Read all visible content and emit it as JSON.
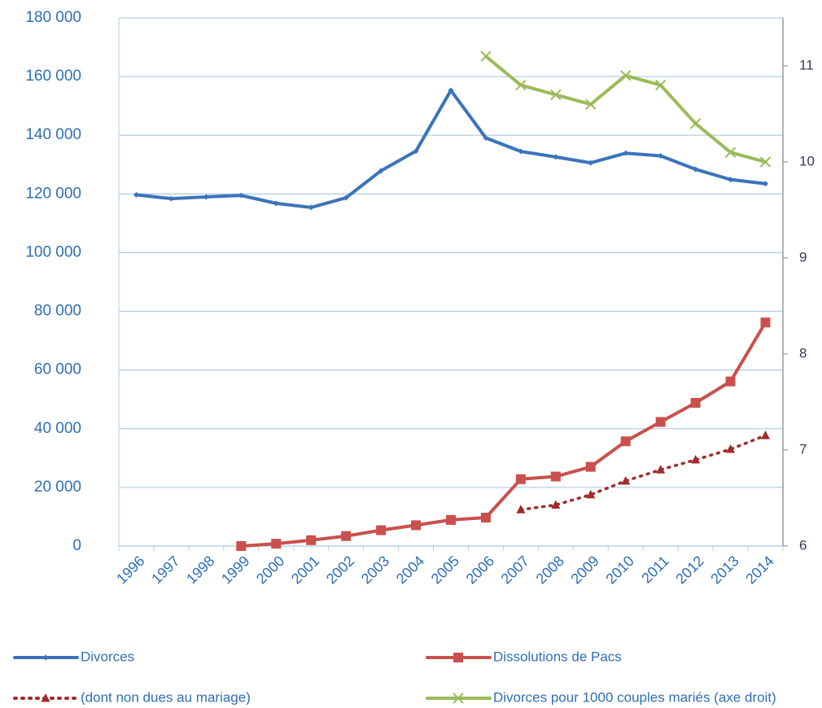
{
  "chart_data": {
    "type": "line",
    "categories": [
      "1996",
      "1997",
      "1998",
      "1999",
      "2000",
      "2001",
      "2002",
      "2003",
      "2004",
      "2005",
      "2006",
      "2007",
      "2008",
      "2009",
      "2010",
      "2011",
      "2012",
      "2013",
      "2014"
    ],
    "ylim": [
      0,
      180000
    ],
    "yticks": [
      {
        "value": 0,
        "label": "0"
      },
      {
        "value": 20000,
        "label": "20 000"
      },
      {
        "value": 40000,
        "label": "40 000"
      },
      {
        "value": 60000,
        "label": "60 000"
      },
      {
        "value": 80000,
        "label": "80 000"
      },
      {
        "value": 100000,
        "label": "100 000"
      },
      {
        "value": 120000,
        "label": "120 000"
      },
      {
        "value": 140000,
        "label": "140 000"
      },
      {
        "value": 160000,
        "label": "160 000"
      },
      {
        "value": 180000,
        "label": "180 000"
      }
    ],
    "y2lim": [
      6,
      11.5
    ],
    "y2ticks": [
      6,
      7,
      8,
      9,
      10,
      11
    ],
    "grid": true,
    "legend": "bottom",
    "series": [
      {
        "name": "Divorces",
        "color": "#3a74bb",
        "marker": "diamond",
        "style": "solid",
        "values": [
          119700,
          118400,
          119000,
          119500,
          116800,
          115400,
          118700,
          127900,
          134600,
          155300,
          139100,
          134500,
          132600,
          130600,
          133900,
          133000,
          128400,
          124900,
          123500
        ]
      },
      {
        "name": "Dissolutions de Pacs",
        "color": "#c9504d",
        "marker": "square",
        "style": "solid",
        "values": [
          null,
          null,
          null,
          0,
          800,
          2000,
          3400,
          5400,
          7100,
          8900,
          9700,
          22800,
          23700,
          27000,
          35700,
          42300,
          48800,
          56100,
          76200
        ]
      },
      {
        "name": "(dont non dues au mariage)",
        "color": "#a02c2a",
        "marker": "triangle",
        "style": "dotted",
        "values": [
          null,
          null,
          null,
          null,
          null,
          null,
          null,
          null,
          null,
          null,
          null,
          12400,
          14000,
          17500,
          22200,
          26000,
          29400,
          33000,
          37700
        ]
      },
      {
        "name": "Divorces pour 1000 couples mariés (axe droit)",
        "color": "#9bbb59",
        "marker": "x",
        "style": "solid",
        "axis": "y2",
        "values": [
          null,
          null,
          null,
          null,
          null,
          null,
          null,
          null,
          null,
          null,
          11.1,
          10.8,
          10.7,
          10.6,
          10.9,
          10.8,
          10.4,
          10.1,
          10.0
        ]
      }
    ]
  }
}
